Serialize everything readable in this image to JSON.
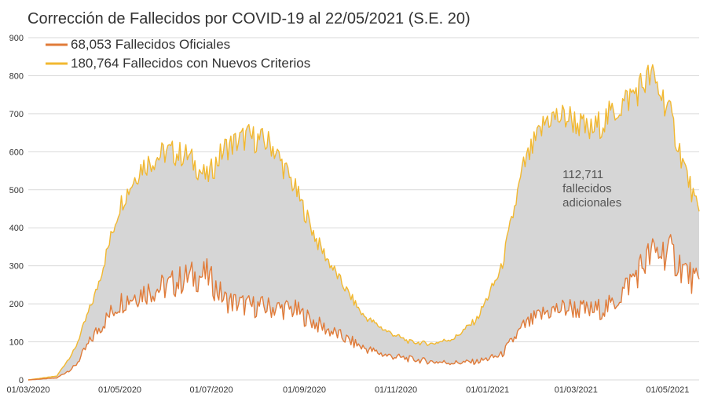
{
  "chart_data": {
    "type": "area",
    "title": "Corrección de Fallecidos por COVID-19 al 22/05/2021 (S.E. 20)",
    "xlabel": "",
    "ylabel": "",
    "ylim": [
      0,
      900
    ],
    "yticks": [
      0,
      100,
      200,
      300,
      400,
      500,
      600,
      700,
      800,
      900
    ],
    "xlim": [
      "2020-03-01",
      "2021-05-22"
    ],
    "xticks": [
      "2020-03-01",
      "2020-05-01",
      "2020-07-01",
      "2020-09-01",
      "2020-11-01",
      "2021-01-01",
      "2021-03-01",
      "2021-05-01"
    ],
    "xtick_labels": [
      "01/03/2020",
      "01/05/2020",
      "01/07/2020",
      "01/09/2020",
      "01/11/2020",
      "01/01/2021",
      "01/03/2021",
      "01/05/2021"
    ],
    "grid": true,
    "legend": "top-left",
    "fill_between_color": "#d6d6d6",
    "series": [
      {
        "name": "68,053 Fallecidos Oficiales",
        "color": "#e07b39",
        "x": [
          "2020-03-01",
          "2020-03-20",
          "2020-04-01",
          "2020-04-15",
          "2020-05-01",
          "2020-05-15",
          "2020-06-01",
          "2020-06-15",
          "2020-06-28",
          "2020-07-10",
          "2020-07-25",
          "2020-08-10",
          "2020-08-25",
          "2020-09-10",
          "2020-09-25",
          "2020-10-10",
          "2020-10-25",
          "2020-11-10",
          "2020-11-25",
          "2020-12-10",
          "2020-12-25",
          "2021-01-10",
          "2021-01-25",
          "2021-02-10",
          "2021-02-25",
          "2021-03-10",
          "2021-03-25",
          "2021-04-10",
          "2021-04-20",
          "2021-05-01",
          "2021-05-10",
          "2021-05-22"
        ],
        "y": [
          0,
          5,
          35,
          125,
          205,
          230,
          245,
          270,
          275,
          210,
          195,
          190,
          185,
          145,
          115,
          85,
          65,
          55,
          48,
          45,
          48,
          65,
          140,
          180,
          190,
          180,
          195,
          280,
          330,
          340,
          300,
          245
        ]
      },
      {
        "name": "180,764 Fallecidos con Nuevos Criterios",
        "color": "#f2b830",
        "x": [
          "2020-03-01",
          "2020-03-20",
          "2020-04-01",
          "2020-04-15",
          "2020-05-01",
          "2020-05-15",
          "2020-06-01",
          "2020-06-15",
          "2020-06-28",
          "2020-07-10",
          "2020-07-25",
          "2020-08-10",
          "2020-08-25",
          "2020-09-10",
          "2020-09-25",
          "2020-10-10",
          "2020-10-25",
          "2020-11-10",
          "2020-11-25",
          "2020-12-10",
          "2020-12-25",
          "2021-01-10",
          "2021-01-25",
          "2021-02-10",
          "2021-02-25",
          "2021-03-10",
          "2021-03-25",
          "2021-04-10",
          "2021-04-20",
          "2021-05-01",
          "2021-05-10",
          "2021-05-22"
        ],
        "y": [
          0,
          10,
          80,
          230,
          460,
          560,
          600,
          590,
          530,
          610,
          640,
          620,
          510,
          360,
          260,
          170,
          130,
          100,
          95,
          110,
          160,
          290,
          560,
          690,
          690,
          650,
          700,
          760,
          800,
          720,
          590,
          430
        ]
      }
    ],
    "annotation": {
      "lines": [
        "112,711",
        "fallecidos",
        "adicionales"
      ],
      "x": "2021-02-20",
      "y": 530
    }
  }
}
